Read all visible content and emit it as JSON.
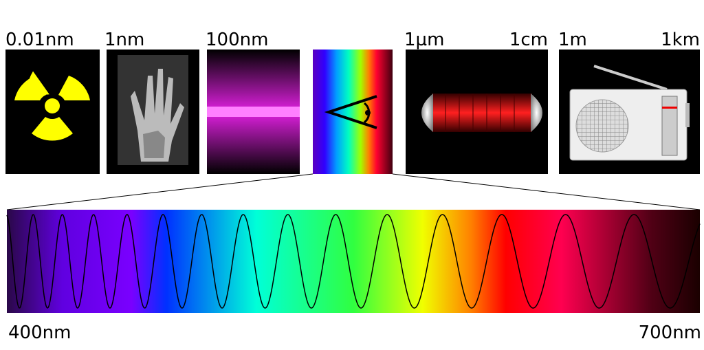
{
  "scale_labels": [
    "0.01nm",
    "1nm",
    "100nm",
    "1µm",
    "1cm",
    "1m",
    "1km"
  ],
  "spectrum": {
    "start": "400nm",
    "end": "700nm"
  }
}
